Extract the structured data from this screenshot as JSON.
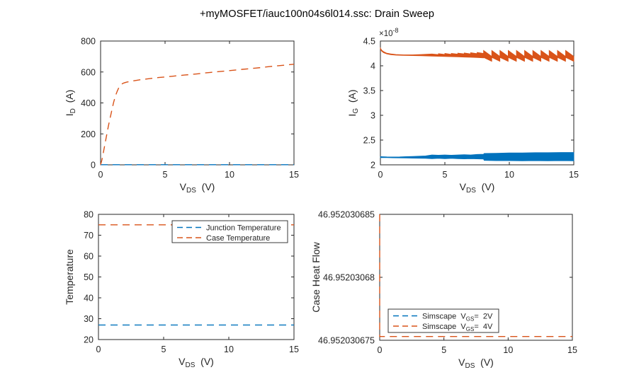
{
  "window": {
    "title": "+myMOSFET/iauc100n04s6l014.ssc: Drain Sweep"
  },
  "colors": {
    "blue": "#0072BD",
    "orange": "#D95319",
    "axis": "#252525",
    "text": "#1a1a1a"
  },
  "chart_data": [
    {
      "key": "drain-current",
      "type": "line",
      "xlabel": "V_{DS}  (V)",
      "ylabel": "I_{D}  (A)",
      "xlim": [
        0,
        15
      ],
      "ylim": [
        0,
        800
      ],
      "xticks": [
        0,
        5,
        10,
        15
      ],
      "xtick_labels": [
        "0",
        "5",
        "10",
        "15"
      ],
      "yticks": [
        0,
        200,
        400,
        600,
        800
      ],
      "ytick_labels": [
        "0",
        "200",
        "400",
        "600",
        "800"
      ],
      "series": [
        {
          "name": "VGS=2V",
          "kind": "line",
          "color": "blue",
          "dash": true,
          "points": [
            [
              0,
              1
            ],
            [
              15,
              1
            ]
          ]
        },
        {
          "name": "VGS=4V",
          "kind": "line",
          "color": "orange",
          "dash": true,
          "points": [
            [
              0,
              0
            ],
            [
              0.1,
              30
            ],
            [
              0.2,
              72
            ],
            [
              0.3,
              118
            ],
            [
              0.4,
              162
            ],
            [
              0.5,
              205
            ],
            [
              0.6,
              248
            ],
            [
              0.7,
              288
            ],
            [
              0.8,
              326
            ],
            [
              0.9,
              364
            ],
            [
              1,
              400
            ],
            [
              1.1,
              430
            ],
            [
              1.2,
              456
            ],
            [
              1.3,
              478
            ],
            [
              1.4,
              496
            ],
            [
              1.5,
              510
            ],
            [
              1.6,
              519
            ],
            [
              1.7,
              525
            ],
            [
              1.8,
              529
            ],
            [
              2,
              534
            ],
            [
              2.5,
              542
            ],
            [
              3,
              549
            ],
            [
              3.5,
              554
            ],
            [
              4,
              559
            ],
            [
              4.5,
              564
            ],
            [
              5,
              568
            ],
            [
              5.5,
              572
            ],
            [
              6,
              576
            ],
            [
              6.5,
              580
            ],
            [
              7,
              584
            ],
            [
              7.5,
              588
            ],
            [
              8,
              593
            ],
            [
              8.5,
              597
            ],
            [
              9,
              601
            ],
            [
              9.5,
              605
            ],
            [
              10,
              609
            ],
            [
              10.5,
              613
            ],
            [
              11,
              617
            ],
            [
              11.5,
              621
            ],
            [
              12,
              625
            ],
            [
              12.5,
              629
            ],
            [
              13,
              634
            ],
            [
              13.5,
              638
            ],
            [
              14,
              642
            ],
            [
              14.5,
              646
            ],
            [
              15,
              650
            ]
          ]
        }
      ]
    },
    {
      "key": "gate-current",
      "type": "line",
      "xlabel": "V_{DS}  (V)",
      "ylabel": "I_{G}  (A)",
      "y_multiplier": "×10^{-8}",
      "xlim": [
        0,
        15
      ],
      "ylim": [
        2,
        4.5
      ],
      "xticks": [
        0,
        5,
        10,
        15
      ],
      "xtick_labels": [
        "0",
        "5",
        "10",
        "15"
      ],
      "yticks": [
        2,
        2.5,
        3,
        3.5,
        4,
        4.5
      ],
      "ytick_labels": [
        "2",
        "2.5",
        "3",
        "3.5",
        "4",
        "4.5"
      ],
      "series": [
        {
          "name": "VGS=2V",
          "kind": "band",
          "color": "blue",
          "upper": [
            [
              0,
              2.165
            ],
            [
              0.5,
              2.16
            ],
            [
              1,
              2.158
            ],
            [
              1.5,
              2.16
            ],
            [
              2,
              2.165
            ],
            [
              2.5,
              2.17
            ],
            [
              3,
              2.175
            ],
            [
              3.5,
              2.18
            ],
            [
              4,
              2.2
            ],
            [
              4.5,
              2.195
            ],
            [
              5,
              2.2
            ],
            [
              5.5,
              2.195
            ],
            [
              6,
              2.2
            ],
            [
              6.5,
              2.205
            ],
            [
              7,
              2.2
            ],
            [
              7.5,
              2.21
            ],
            [
              8,
              2.215
            ],
            [
              8.05,
              2.23
            ],
            [
              9,
              2.235
            ],
            [
              10,
              2.24
            ],
            [
              11,
              2.24
            ],
            [
              12,
              2.245
            ],
            [
              13,
              2.245
            ],
            [
              14,
              2.25
            ],
            [
              15,
              2.25
            ]
          ],
          "lower": [
            [
              0,
              2.145
            ],
            [
              0.5,
              2.145
            ],
            [
              1,
              2.142
            ],
            [
              1.5,
              2.14
            ],
            [
              2,
              2.138
            ],
            [
              2.5,
              2.135
            ],
            [
              3,
              2.133
            ],
            [
              3.5,
              2.13
            ],
            [
              4,
              2.125
            ],
            [
              4.5,
              2.13
            ],
            [
              5,
              2.125
            ],
            [
              5.5,
              2.13
            ],
            [
              6,
              2.125
            ],
            [
              6.5,
              2.12
            ],
            [
              7,
              2.125
            ],
            [
              7.5,
              2.12
            ],
            [
              8,
              2.115
            ],
            [
              8.05,
              2.09
            ],
            [
              9,
              2.085
            ],
            [
              10,
              2.085
            ],
            [
              11,
              2.08
            ],
            [
              12,
              2.085
            ],
            [
              13,
              2.08
            ],
            [
              14,
              2.085
            ],
            [
              15,
              2.08
            ]
          ]
        },
        {
          "name": "VGS=4V",
          "kind": "band",
          "color": "orange",
          "upper": [
            [
              0,
              4.36
            ],
            [
              0.1,
              4.315
            ],
            [
              0.25,
              4.285
            ],
            [
              0.5,
              4.255
            ],
            [
              0.8,
              4.24
            ],
            [
              1.2,
              4.228
            ],
            [
              1.8,
              4.222
            ],
            [
              2.5,
              4.222
            ],
            [
              3.2,
              4.228
            ],
            [
              4,
              4.238
            ],
            [
              4.5,
              4.226
            ],
            [
              4.5,
              4.246
            ],
            [
              5,
              4.23
            ],
            [
              5,
              4.25
            ],
            [
              5.5,
              4.232
            ],
            [
              5.5,
              4.252
            ],
            [
              6,
              4.236
            ],
            [
              6,
              4.256
            ],
            [
              6.5,
              4.24
            ],
            [
              6.5,
              4.26
            ],
            [
              7,
              4.242
            ],
            [
              7,
              4.264
            ],
            [
              7.5,
              4.246
            ],
            [
              7.5,
              4.27
            ],
            [
              8,
              4.25
            ],
            [
              8,
              4.31
            ],
            [
              8.64,
              4.19
            ],
            [
              8.64,
              4.31
            ],
            [
              9.27,
              4.19
            ],
            [
              9.27,
              4.31
            ],
            [
              9.91,
              4.19
            ],
            [
              9.91,
              4.31
            ],
            [
              10.55,
              4.19
            ],
            [
              10.55,
              4.31
            ],
            [
              11.18,
              4.19
            ],
            [
              11.18,
              4.31
            ],
            [
              11.82,
              4.19
            ],
            [
              11.82,
              4.31
            ],
            [
              12.45,
              4.19
            ],
            [
              12.45,
              4.31
            ],
            [
              13.09,
              4.19
            ],
            [
              13.09,
              4.31
            ],
            [
              13.73,
              4.19
            ],
            [
              13.73,
              4.31
            ],
            [
              14.36,
              4.19
            ],
            [
              14.36,
              4.31
            ],
            [
              15,
              4.19
            ]
          ],
          "lower": [
            [
              0,
              4.335
            ],
            [
              0.1,
              4.295
            ],
            [
              0.25,
              4.265
            ],
            [
              0.5,
              4.24
            ],
            [
              0.8,
              4.225
            ],
            [
              1.2,
              4.215
            ],
            [
              1.8,
              4.21
            ],
            [
              2.5,
              4.206
            ],
            [
              3.2,
              4.202
            ],
            [
              4,
              4.196
            ],
            [
              4.5,
              4.192
            ],
            [
              5,
              4.188
            ],
            [
              5.5,
              4.184
            ],
            [
              6,
              4.18
            ],
            [
              6.5,
              4.176
            ],
            [
              7,
              4.172
            ],
            [
              7.5,
              4.166
            ],
            [
              8,
              4.16
            ],
            [
              8,
              4.17
            ],
            [
              8.64,
              4.09
            ],
            [
              8.64,
              4.17
            ],
            [
              9.27,
              4.09
            ],
            [
              9.27,
              4.17
            ],
            [
              9.91,
              4.09
            ],
            [
              9.91,
              4.17
            ],
            [
              10.55,
              4.09
            ],
            [
              10.55,
              4.17
            ],
            [
              11.18,
              4.09
            ],
            [
              11.18,
              4.17
            ],
            [
              11.82,
              4.09
            ],
            [
              11.82,
              4.17
            ],
            [
              12.45,
              4.09
            ],
            [
              12.45,
              4.17
            ],
            [
              13.09,
              4.09
            ],
            [
              13.09,
              4.17
            ],
            [
              13.73,
              4.09
            ],
            [
              13.73,
              4.17
            ],
            [
              14.36,
              4.09
            ],
            [
              14.36,
              4.17
            ],
            [
              15,
              4.09
            ]
          ]
        }
      ]
    },
    {
      "key": "temperature",
      "type": "line",
      "xlabel": "V_{DS}  (V)",
      "ylabel": "Temperature",
      "xlim": [
        0,
        15
      ],
      "ylim": [
        20,
        80
      ],
      "xticks": [
        0,
        5,
        10,
        15
      ],
      "xtick_labels": [
        "0",
        "5",
        "10",
        "15"
      ],
      "yticks": [
        20,
        30,
        40,
        50,
        60,
        70,
        80
      ],
      "ytick_labels": [
        "20",
        "30",
        "40",
        "50",
        "60",
        "70",
        "80"
      ],
      "legend": {
        "position": "northeast",
        "entries": [
          {
            "label": "Junction Temperature",
            "color": "blue"
          },
          {
            "label": "Case Temperature",
            "color": "orange"
          }
        ]
      },
      "series": [
        {
          "name": "Junction Temperature",
          "kind": "line",
          "color": "blue",
          "dash": true,
          "points": [
            [
              0,
              27
            ],
            [
              15,
              27
            ]
          ]
        },
        {
          "name": "Case Temperature",
          "kind": "line",
          "color": "orange",
          "dash": true,
          "points": [
            [
              0,
              75
            ],
            [
              15,
              75
            ]
          ]
        }
      ]
    },
    {
      "key": "case-heat-flow",
      "type": "line",
      "xlabel": "V_{DS}  (V)",
      "ylabel": "Case Heat Flow",
      "xlim": [
        0,
        15
      ],
      "ylim": [
        46.952030675,
        46.952030685
      ],
      "xticks": [
        0,
        5,
        10,
        15
      ],
      "xtick_labels": [
        "0",
        "5",
        "10",
        "15"
      ],
      "yticks": [
        46.952030675,
        46.95203068,
        46.952030685
      ],
      "ytick_labels": [
        "46.952030675",
        "46.95203068",
        "46.952030685"
      ],
      "legend": {
        "position": "west",
        "entries": [
          {
            "label": "Simscape  V_{GS}=  2V",
            "color": "blue"
          },
          {
            "label": "Simscape  V_{GS}=  4V",
            "color": "orange"
          }
        ]
      },
      "series": [
        {
          "name": "Simscape VGS=2V",
          "kind": "line",
          "color": "blue",
          "dash": true,
          "points": []
        },
        {
          "name": "Simscape VGS=4V",
          "kind": "line",
          "color": "orange",
          "dash": true,
          "points": [
            [
              0,
              46.952030685
            ],
            [
              0,
              46.9520306753
            ],
            [
              15,
              46.9520306753
            ]
          ]
        }
      ]
    }
  ]
}
